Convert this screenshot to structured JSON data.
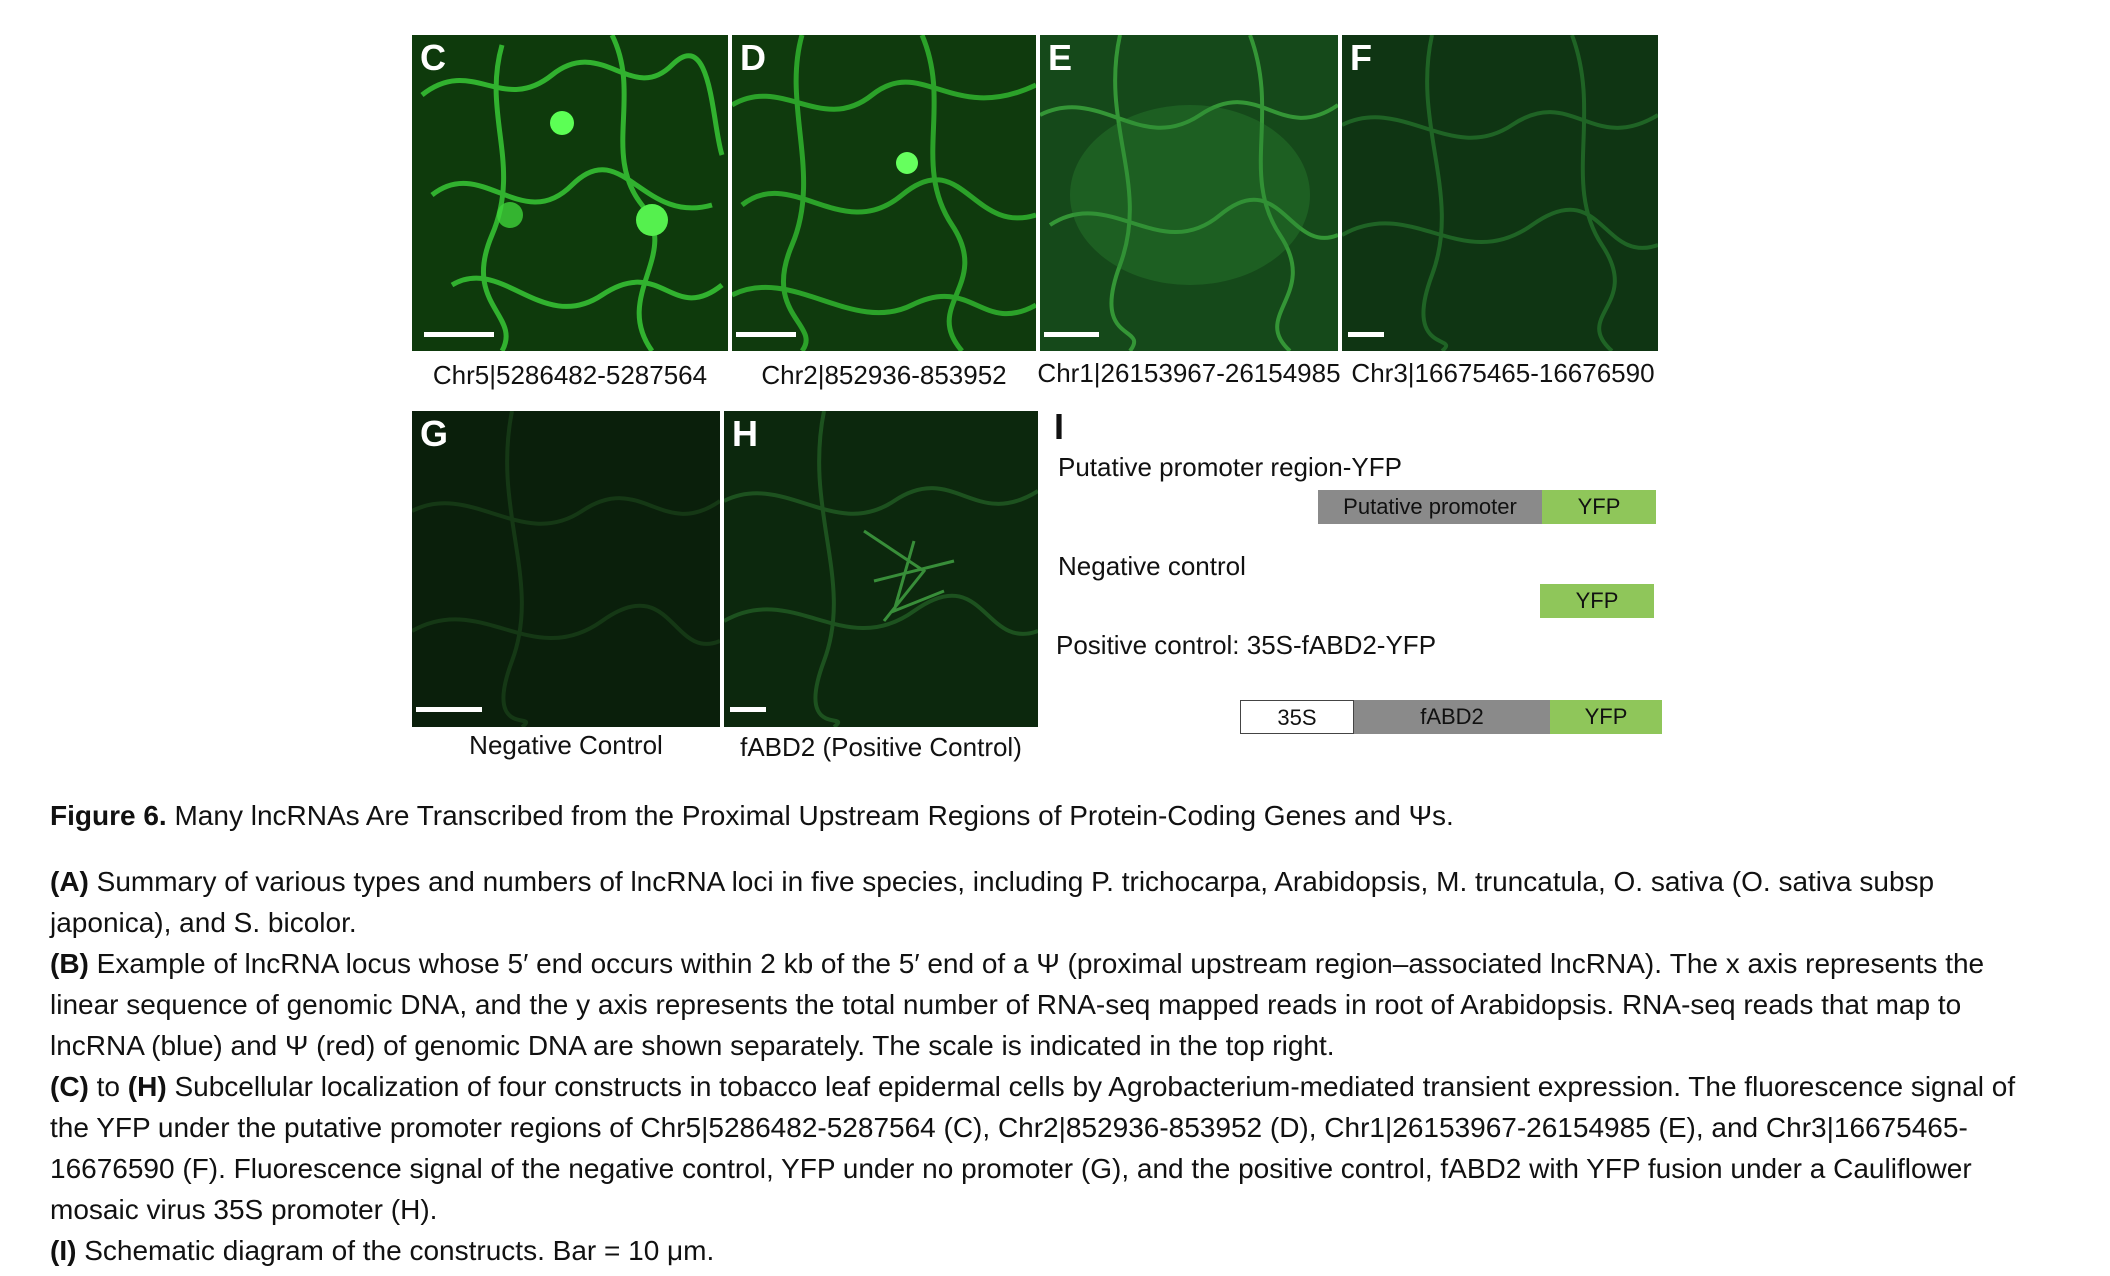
{
  "panels": [
    {
      "letter": "C",
      "caption": "Chr5|5286482-5287564"
    },
    {
      "letter": "D",
      "caption": "Chr2|852936-853952"
    },
    {
      "letter": "E",
      "caption": "Chr1|26153967-26154985"
    },
    {
      "letter": "F",
      "caption": "Chr3|16675465-16676590"
    },
    {
      "letter": "G",
      "caption": "Negative Control"
    },
    {
      "letter": "H",
      "caption": "fABD2 (Positive Control)"
    }
  ],
  "schematic": {
    "letter": "I",
    "construct1_label": "Putative promoter region-YFP",
    "construct1_boxes": [
      "Putative promoter",
      "YFP"
    ],
    "construct2_label": "Negative control",
    "construct2_boxes": [
      "YFP"
    ],
    "construct3_label": "Positive control: 35S-fABD2-YFP",
    "construct3_boxes": [
      "35S",
      "fABD2",
      "YFP"
    ]
  },
  "figure": {
    "number": "Figure 6.",
    "title": "Many lncRNAs Are Transcribed from the Proximal Upstream Regions of Protein-Coding Genes and Ψs."
  },
  "legend": {
    "A_tag": "(A)",
    "A_text": " Summary of various types and numbers of lncRNA loci in five species, including P. trichocarpa, Arabidopsis, M. truncatula, O. sativa (O. sativa subsp japonica), and S. bicolor.",
    "B_tag": "(B)",
    "B_text": " Example of lncRNA locus whose 5′ end occurs within 2 kb of the 5′ end of a Ψ (proximal upstream region–associated lncRNA). The x axis represents the linear sequence of genomic DNA, and the y axis represents the total number of RNA-seq mapped reads in root of Arabidopsis. RNA-seq reads that map to lncRNA (blue) and Ψ (red) of genomic DNA are shown separately. The scale is indicated in the top right.",
    "CH_tag_start": "(C)",
    "CH_to": " to ",
    "CH_tag_end": "(H)",
    "CH_text": " Subcellular localization of four constructs in tobacco leaf epidermal cells by Agrobacterium-mediated transient expression. The fluorescence signal of the YFP under the putative promoter regions of Chr5|5286482-5287564 (C), Chr2|852936-853952 (D), Chr1|26153967-26154985 (E), and Chr3|16675465-16676590 (F). Fluorescence signal of the negative control, YFP under no promoter (G), and the positive control, fABD2 with YFP fusion under a Cauliflower mosaic virus 35S promoter (H).",
    "I_tag": "(I)",
    "I_text": " Schematic diagram of the constructs. Bar = 10 μm."
  },
  "colors": {
    "fluorescence": "#3fd33a",
    "promoter_box": "#8a8a8a",
    "yfp_box": "#8fc65a"
  }
}
